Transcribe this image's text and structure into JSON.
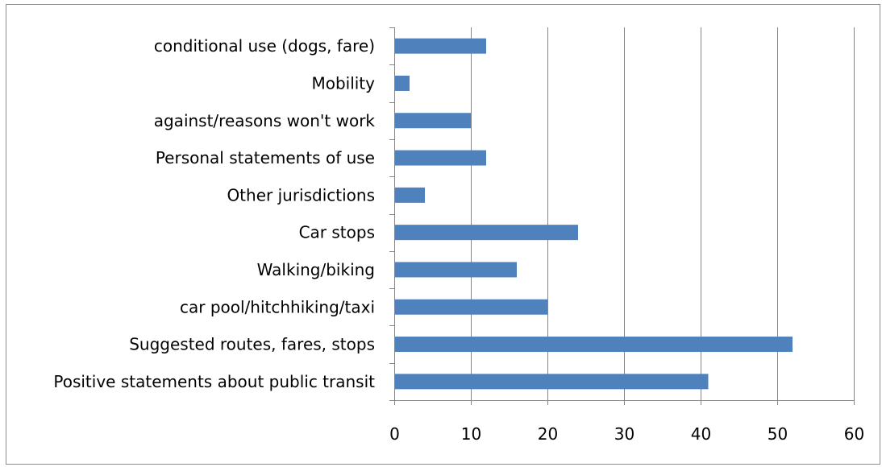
{
  "chart_data": {
    "type": "bar",
    "orientation": "horizontal",
    "categories": [
      "conditional use (dogs, fare)",
      "Mobility",
      "against/reasons won't work",
      "Personal statements of use",
      "Other jurisdictions",
      "Car stops",
      "Walking/biking",
      "car pool/hitchhiking/taxi",
      "Suggested routes, fares, stops",
      "Positive statements about public transit"
    ],
    "values": [
      12,
      2,
      10,
      12,
      4,
      24,
      16,
      20,
      52,
      41
    ],
    "xlim": [
      0,
      60
    ],
    "xticks": [
      "0",
      "10",
      "20",
      "30",
      "40",
      "50",
      "60"
    ],
    "grid": "vertical",
    "legend": "none",
    "bar_color": "#4f81bd",
    "gridline_color": "#868686",
    "title": "",
    "xlabel": "",
    "ylabel": ""
  }
}
